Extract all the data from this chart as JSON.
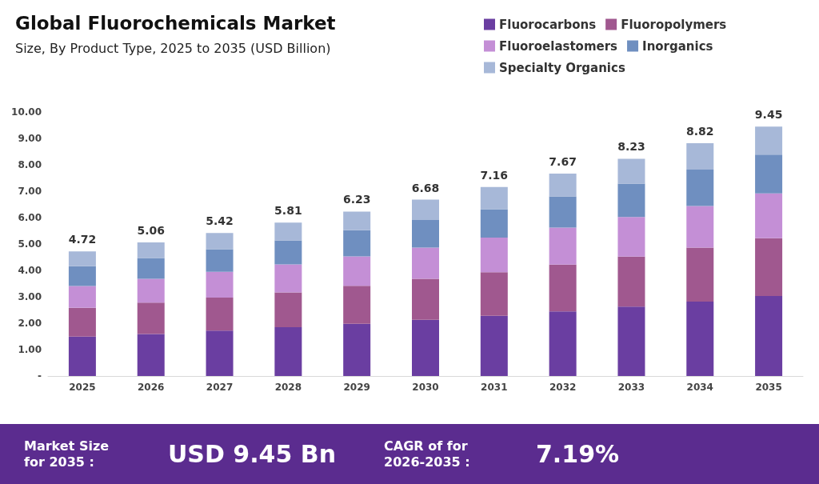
{
  "chart_data": {
    "type": "bar",
    "title": "Global Fluorochemicals Market",
    "subtitle": "Size, By Product Type, 2025 to 2035 (USD Billion)",
    "categories": [
      "2025",
      "2026",
      "2027",
      "2028",
      "2029",
      "2030",
      "2031",
      "2032",
      "2033",
      "2034",
      "2035"
    ],
    "stacked": true,
    "series": [
      {
        "name": "Fluorocarbons",
        "color": "#6a3ea1",
        "values": [
          1.49,
          1.59,
          1.72,
          1.85,
          1.98,
          2.13,
          2.28,
          2.45,
          2.63,
          2.82,
          3.03
        ]
      },
      {
        "name": "Fluoropolymers",
        "color": "#a0588f",
        "values": [
          1.09,
          1.19,
          1.25,
          1.32,
          1.44,
          1.55,
          1.65,
          1.77,
          1.89,
          2.04,
          2.19
        ]
      },
      {
        "name": "Fluoroelastomers",
        "color": "#c48fd6",
        "values": [
          0.83,
          0.9,
          0.98,
          1.06,
          1.11,
          1.18,
          1.31,
          1.4,
          1.5,
          1.58,
          1.7
        ]
      },
      {
        "name": "Inorganics",
        "color": "#6f8fc0",
        "values": [
          0.75,
          0.79,
          0.85,
          0.91,
          0.99,
          1.05,
          1.08,
          1.18,
          1.27,
          1.38,
          1.47
        ]
      },
      {
        "name": "Specialty Organics",
        "color": "#a7b8d8",
        "values": [
          0.56,
          0.59,
          0.62,
          0.67,
          0.71,
          0.77,
          0.84,
          0.87,
          0.94,
          1.0,
          1.06
        ]
      }
    ],
    "totals": [
      "4.72",
      "5.06",
      "5.42",
      "5.81",
      "6.23",
      "6.68",
      "7.16",
      "7.67",
      "8.23",
      "8.82",
      "9.45"
    ],
    "ylim": [
      0,
      10
    ],
    "yticks": [
      {
        "value": 0,
        "label": "-"
      },
      {
        "value": 1,
        "label": "1.00"
      },
      {
        "value": 2,
        "label": "2.00"
      },
      {
        "value": 3,
        "label": "3.00"
      },
      {
        "value": 4,
        "label": "4.00"
      },
      {
        "value": 5,
        "label": "5.00"
      },
      {
        "value": 6,
        "label": "6.00"
      },
      {
        "value": 7,
        "label": "7.00"
      },
      {
        "value": 8,
        "label": "8.00"
      },
      {
        "value": 9,
        "label": "9.00"
      },
      {
        "value": 10,
        "label": "10.00"
      }
    ],
    "grid": false,
    "legend": "top right",
    "annotations": [
      "Market Size for 2035 :",
      "USD 9.45 Bn",
      "CAGR of for 2026-2035 :",
      "7.19%"
    ]
  }
}
